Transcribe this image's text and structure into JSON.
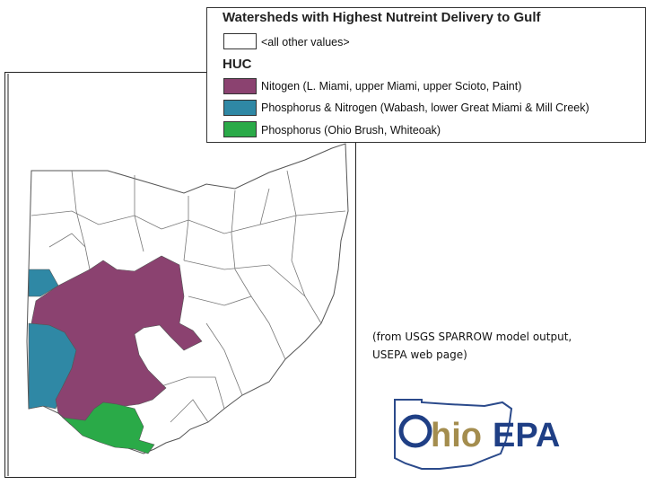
{
  "legend": {
    "title": "Watersheds with Highest Nutreint Delivery to Gulf",
    "default_item": "<all other values>",
    "group_title": "HUC",
    "items": [
      "Nitogen  (L. Miami, upper Miami, upper Scioto, Paint)",
      "Phosphorus & Nitrogen (Wabash, lower Great Miami & Mill Creek)",
      "Phosphorus (Ohio Brush, Whiteoak)"
    ]
  },
  "caption": {
    "lines": [
      "(from USGS SPARROW model output,",
      "USEPA web page)"
    ]
  },
  "logo": {
    "text_left": "hio",
    "text_right": "EPA"
  }
}
